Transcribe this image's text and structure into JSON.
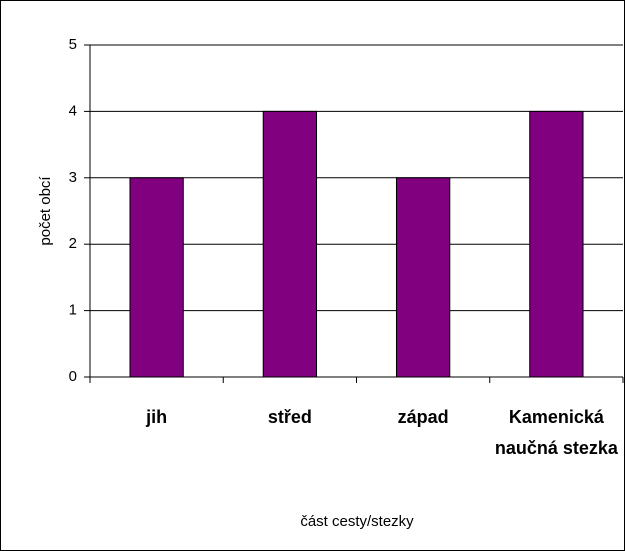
{
  "chart_data": {
    "type": "bar",
    "categories": [
      "jih",
      "střed",
      "západ",
      "Kamenická naučná stezka"
    ],
    "values": [
      3,
      4,
      3,
      4
    ],
    "color": "#800080",
    "ylim": [
      0,
      5
    ],
    "yticks": [
      0,
      1,
      2,
      3,
      4,
      5
    ],
    "grid": true,
    "y_label": "počet obcí",
    "x_label": "část cesty/stezky"
  }
}
